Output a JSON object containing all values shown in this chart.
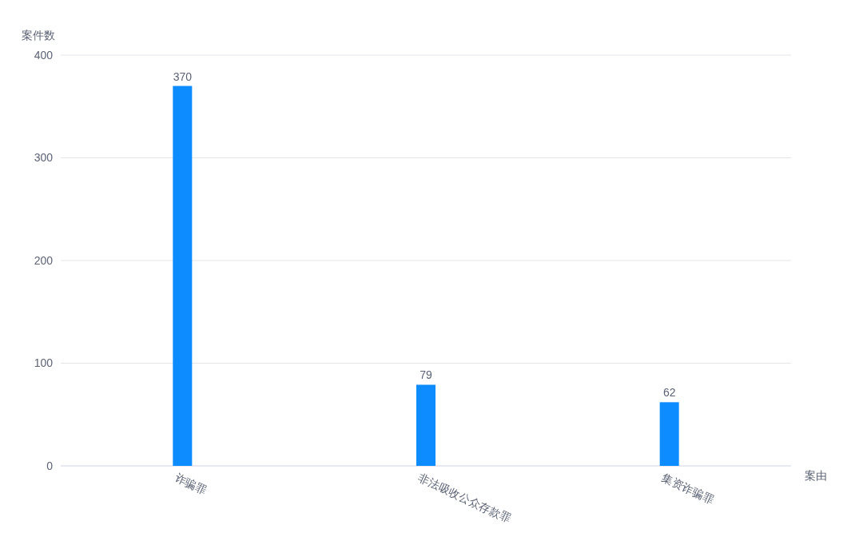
{
  "chart_data": {
    "type": "bar",
    "xlabel": "案由",
    "ylabel": "案件数",
    "categories": [
      "诈骗罪",
      "非法吸收公众存款罪",
      "集资诈骗罪"
    ],
    "values": [
      370,
      79,
      62
    ],
    "color": "#0c8cff",
    "ylim": [
      0,
      400
    ],
    "yticks": [
      0,
      100,
      200,
      300,
      400
    ],
    "grid": "y",
    "data_labels": true
  }
}
